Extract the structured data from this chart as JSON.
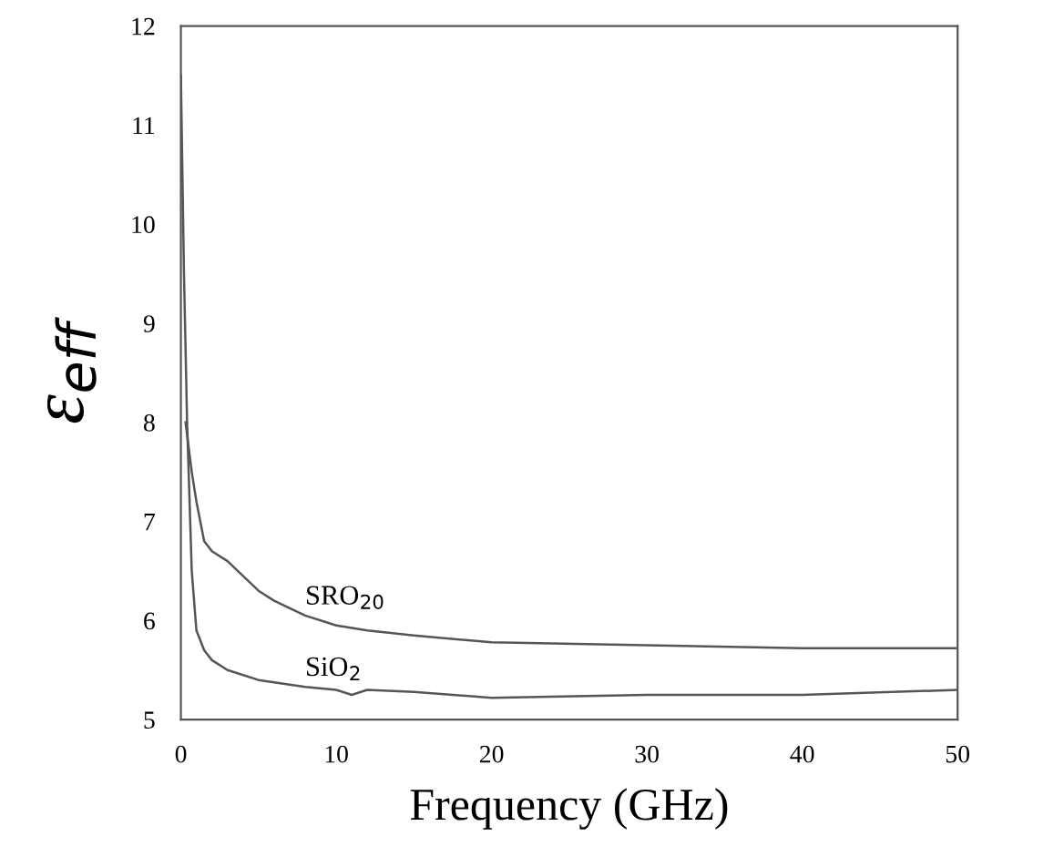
{
  "chart_data": {
    "type": "line",
    "xlabel": "Frequency (GHz)",
    "ylabel": "ε$_{eff}$",
    "xlim": [
      0,
      50
    ],
    "ylim": [
      5,
      12
    ],
    "xticks": [
      0,
      10,
      20,
      30,
      40,
      50
    ],
    "yticks": [
      5,
      6,
      7,
      8,
      9,
      10,
      11,
      12
    ],
    "grid": false,
    "marker": "none",
    "line_style": "solid",
    "series": [
      {
        "name": "SRO$_{20}$",
        "color": "#555555",
        "x": [
          0.3,
          0.7,
          1,
          1.5,
          2,
          3,
          4,
          5,
          6,
          8,
          10,
          12,
          15,
          20,
          30,
          40,
          50
        ],
        "values": [
          8.0,
          7.5,
          7.2,
          6.8,
          6.7,
          6.6,
          6.45,
          6.3,
          6.2,
          6.05,
          5.95,
          5.9,
          5.85,
          5.78,
          5.75,
          5.72,
          5.72
        ]
      },
      {
        "name": "SiO$_{2}$",
        "color": "#555555",
        "x": [
          0,
          0.2,
          0.4,
          0.7,
          1,
          1.5,
          2,
          3,
          5,
          8,
          10,
          11,
          12,
          15,
          20,
          30,
          40,
          50
        ],
        "values": [
          11.5,
          9.5,
          8,
          6.5,
          5.9,
          5.7,
          5.6,
          5.5,
          5.4,
          5.33,
          5.3,
          5.25,
          5.3,
          5.28,
          5.22,
          5.25,
          5.25,
          5.3
        ]
      }
    ]
  }
}
